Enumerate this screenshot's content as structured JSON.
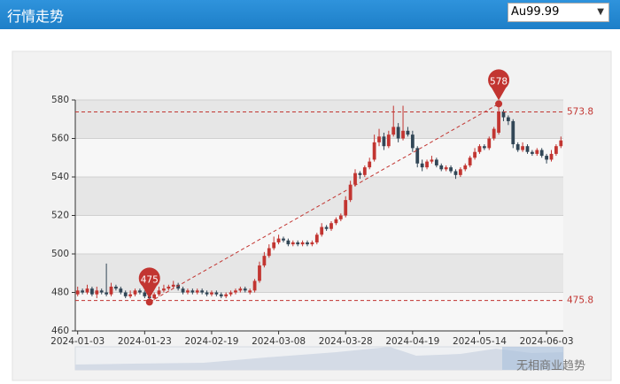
{
  "header": {
    "title": "行情走势",
    "selector": "Au99.99"
  },
  "watermark": "无相商业趋势",
  "chart_data": {
    "type": "candlestick",
    "categories": [
      "2024-01-03",
      null,
      null,
      null,
      null,
      null,
      null,
      null,
      null,
      null,
      null,
      null,
      null,
      null,
      "2024-01-23",
      null,
      null,
      null,
      null,
      null,
      null,
      null,
      null,
      null,
      null,
      null,
      null,
      null,
      "2024-02-19",
      null,
      null,
      null,
      null,
      null,
      null,
      null,
      null,
      null,
      null,
      null,
      null,
      null,
      "2024-03-08",
      null,
      null,
      null,
      null,
      null,
      null,
      null,
      null,
      null,
      null,
      null,
      null,
      null,
      "2024-03-28",
      null,
      null,
      null,
      null,
      null,
      null,
      null,
      null,
      null,
      null,
      null,
      null,
      null,
      "2024-04-19",
      null,
      null,
      null,
      null,
      null,
      null,
      null,
      null,
      null,
      null,
      null,
      null,
      null,
      "2024-05-14",
      null,
      null,
      null,
      null,
      null,
      null,
      null,
      null,
      null,
      null,
      null,
      null,
      null,
      "2024-06-03",
      null,
      null,
      null
    ],
    "open": [
      479,
      481,
      480,
      482,
      479,
      481,
      480,
      479,
      483,
      482,
      480,
      478,
      479,
      481,
      480,
      478,
      477,
      479,
      481,
      482,
      483,
      484,
      482,
      480,
      481,
      480,
      481,
      480,
      479,
      480,
      479,
      478,
      479,
      480,
      481,
      482,
      480,
      481,
      486,
      494,
      499,
      503,
      506,
      508,
      507,
      505,
      506,
      505,
      506,
      505,
      506,
      510,
      514,
      513,
      516,
      518,
      520,
      528,
      536,
      542,
      541,
      545,
      549,
      558,
      561,
      556,
      562,
      566,
      560,
      564,
      562,
      555,
      547,
      545,
      548,
      549,
      546,
      544,
      545,
      543,
      541,
      544,
      546,
      550,
      553,
      556,
      555,
      560,
      563,
      574,
      571,
      569,
      557,
      554,
      556,
      553,
      552,
      554,
      551,
      549,
      552,
      556
    ],
    "close": [
      481,
      480,
      482,
      479,
      481,
      480,
      479,
      483,
      482,
      480,
      478,
      479,
      481,
      480,
      478,
      477,
      479,
      481,
      482,
      483,
      484,
      482,
      480,
      481,
      480,
      481,
      480,
      479,
      480,
      479,
      478,
      479,
      480,
      481,
      482,
      481,
      481,
      486,
      494,
      499,
      503,
      506,
      508,
      507,
      505,
      506,
      505,
      506,
      505,
      506,
      510,
      514,
      513,
      516,
      518,
      520,
      528,
      536,
      542,
      541,
      545,
      548,
      558,
      561,
      556,
      562,
      566,
      560,
      564,
      562,
      555,
      547,
      545,
      548,
      549,
      546,
      544,
      545,
      543,
      541,
      544,
      546,
      550,
      553,
      556,
      555,
      560,
      565,
      574,
      571,
      569,
      557,
      554,
      556,
      553,
      552,
      554,
      551,
      549,
      552,
      556,
      559
    ],
    "high": [
      483,
      482,
      484,
      483,
      483,
      482,
      495,
      485,
      484,
      483,
      481,
      481,
      482,
      482,
      481,
      480,
      480,
      483,
      484,
      484,
      486,
      485,
      483,
      482,
      482,
      482,
      482,
      481,
      481,
      481,
      480,
      480,
      481,
      482,
      483,
      483,
      482,
      487,
      496,
      501,
      505,
      509,
      510,
      509,
      508,
      507,
      507,
      507,
      507,
      507,
      511,
      516,
      515,
      517,
      519,
      521,
      530,
      538,
      544,
      543,
      546,
      550,
      562,
      565,
      563,
      564,
      577,
      568,
      577,
      566,
      564,
      556,
      549,
      549,
      551,
      550,
      547,
      546,
      546,
      544,
      545,
      547,
      551,
      555,
      557,
      557,
      561,
      566,
      578,
      575,
      572,
      570,
      558,
      558,
      557,
      554,
      555,
      555,
      552,
      554,
      557,
      561
    ],
    "low": [
      478,
      479,
      479,
      478,
      477,
      479,
      478,
      478,
      481,
      479,
      477,
      477,
      478,
      479,
      477,
      475,
      476,
      478,
      480,
      481,
      482,
      481,
      479,
      479,
      479,
      479,
      479,
      478,
      478,
      478,
      477,
      477,
      478,
      479,
      480,
      480,
      479,
      480,
      485,
      493,
      498,
      502,
      505,
      506,
      504,
      504,
      504,
      504,
      504,
      504,
      505,
      509,
      512,
      512,
      515,
      517,
      519,
      527,
      535,
      539,
      540,
      544,
      548,
      556,
      554,
      555,
      561,
      558,
      559,
      561,
      553,
      545,
      543,
      544,
      547,
      545,
      543,
      543,
      542,
      539,
      540,
      543,
      545,
      549,
      552,
      554,
      554,
      559,
      562,
      569,
      567,
      555,
      553,
      553,
      552,
      551,
      551,
      550,
      547,
      548,
      551,
      555
    ],
    "up_color": "#c23531",
    "down_color": "#314656",
    "ylim": [
      460,
      580
    ],
    "yticks": [
      460,
      480,
      500,
      520,
      540,
      560,
      580
    ],
    "max_point": 578,
    "min_point": 475,
    "mark_lines": [
      573.8,
      475.8
    ],
    "mark_color": "#c23531",
    "split_area": true
  }
}
